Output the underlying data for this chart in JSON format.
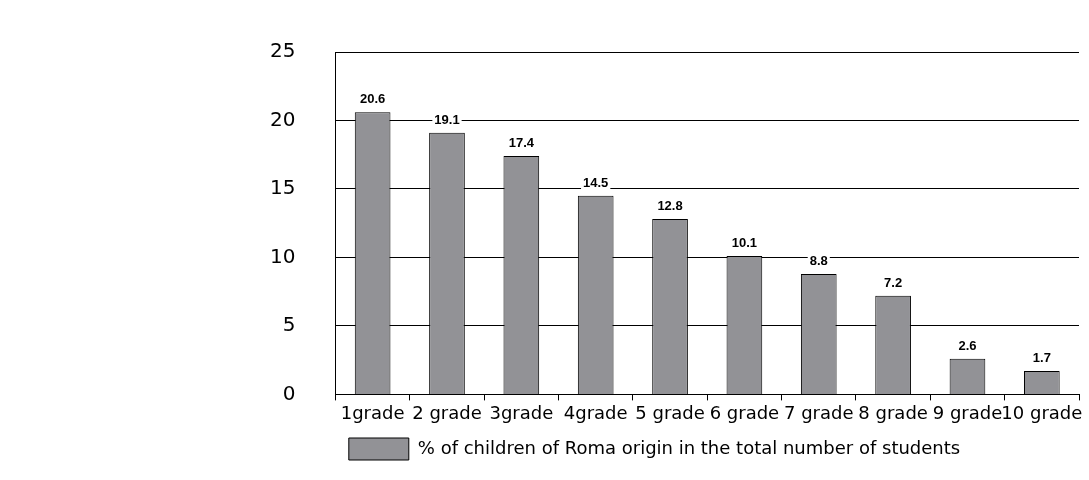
{
  "chart_data": {
    "type": "bar",
    "categories": [
      "1grade",
      "2 grade",
      "3grade",
      "4grade",
      "5 grade",
      "6 grade",
      "7 grade",
      "8 grade",
      "9 grade",
      "10 grade"
    ],
    "series": [
      {
        "name": "% of children of Roma origin in the total number of students",
        "color": "#929296",
        "values": [
          20.6,
          19.1,
          17.4,
          14.5,
          12.8,
          10.1,
          8.8,
          7.2,
          2.6,
          1.7
        ]
      }
    ],
    "ylim": [
      0,
      25
    ],
    "yticks": [
      0,
      5,
      10,
      15,
      20,
      25
    ],
    "grid": "y",
    "legend": "bottom",
    "data_labels": true
  }
}
